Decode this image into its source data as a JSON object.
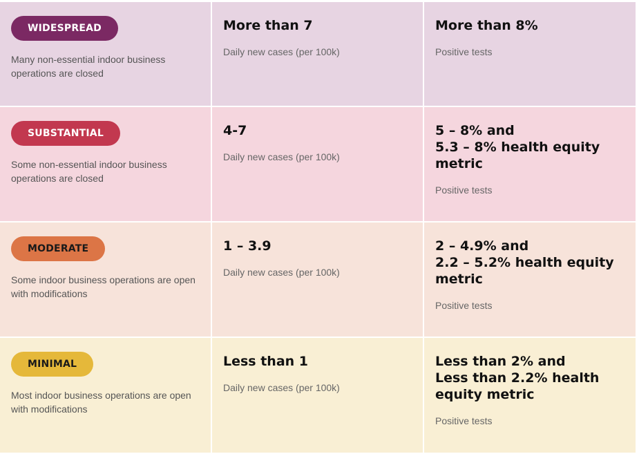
{
  "colors": {
    "widespread_bg": "#e7d4e2",
    "substantial_bg": "#f5d6de",
    "moderate_bg": "#f7e3da",
    "minimal_bg": "#f9efd4",
    "widespread_pill": "#7b2963",
    "substantial_pill": "#c2384f",
    "moderate_pill": "#dc7546",
    "minimal_pill": "#e5b83a"
  },
  "tiers": [
    {
      "name": "WIDESPREAD",
      "description": "Many non-essential indoor business operations are closed",
      "cases_value": "More than 7",
      "cases_label": "Daily new cases (per 100k)",
      "tests_value": "More than 8%",
      "tests_label": "Positive tests"
    },
    {
      "name": "SUBSTANTIAL",
      "description": "Some non-essential indoor business operations are closed",
      "cases_value": "4-7",
      "cases_label": "Daily new cases (per 100k)",
      "tests_value": "5 – 8% and\n5.3 – 8% health equity metric",
      "tests_label": "Positive tests"
    },
    {
      "name": "MODERATE",
      "description": "Some indoor business operations are open with modifications",
      "cases_value": "1 – 3.9",
      "cases_label": "Daily new cases (per 100k)",
      "tests_value": "2 – 4.9% and\n2.2 – 5.2% health equity metric",
      "tests_label": "Positive tests"
    },
    {
      "name": "MINIMAL",
      "description": "Most indoor business operations are open with modifications",
      "cases_value": "Less than 1",
      "cases_label": "Daily new cases (per 100k)",
      "tests_value": "Less than 2% and\nLess than 2.2% health equity metric",
      "tests_label": "Positive tests"
    }
  ]
}
